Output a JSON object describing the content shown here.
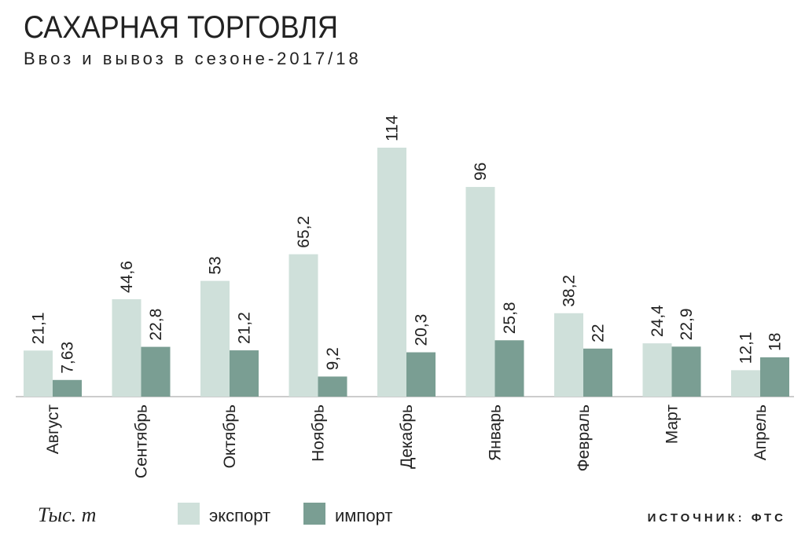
{
  "chart_data": {
    "type": "bar",
    "title": "САХАРНАЯ ТОРГОВЛЯ",
    "subtitle": "Ввоз и вывоз в сезоне-2017/18",
    "unit": "Тыс. т",
    "source": "ИСТОЧНИК: ФТС",
    "categories": [
      "Август",
      "Сентябрь",
      "Октябрь",
      "Ноябрь",
      "Декабрь",
      "Январь",
      "Февраль",
      "Март",
      "Апрель"
    ],
    "series": [
      {
        "name": "экспорт",
        "color": "#cfe0da",
        "values": [
          21.1,
          44.6,
          53,
          65.2,
          114,
          96,
          38.2,
          24.4,
          12.1
        ],
        "value_labels": [
          "21,1",
          "44,6",
          "53",
          "65,2",
          "114",
          "96",
          "38,2",
          "24,4",
          "12,1"
        ]
      },
      {
        "name": "импорт",
        "color": "#7a9e93",
        "values": [
          7.63,
          22.8,
          21.2,
          9.2,
          20.3,
          25.8,
          22,
          22.9,
          18
        ],
        "value_labels": [
          "7,63",
          "22,8",
          "21,2",
          "9,2",
          "20,3",
          "25,8",
          "22",
          "22,9",
          "18"
        ]
      }
    ]
  }
}
